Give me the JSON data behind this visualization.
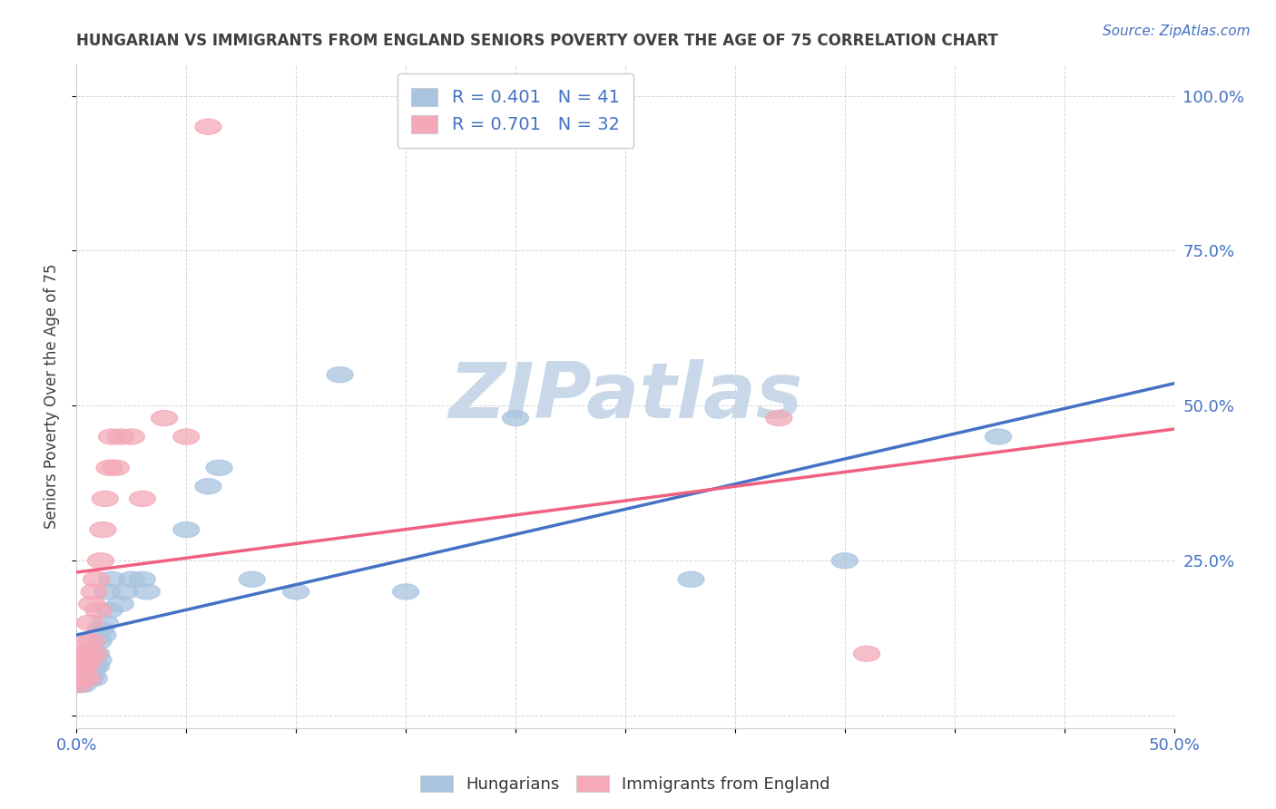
{
  "title": "HUNGARIAN VS IMMIGRANTS FROM ENGLAND SENIORS POVERTY OVER THE AGE OF 75 CORRELATION CHART",
  "source_text": "Source: ZipAtlas.com",
  "ylabel": "Seniors Poverty Over the Age of 75",
  "xlim": [
    0.0,
    0.5
  ],
  "ylim": [
    -0.02,
    1.05
  ],
  "background_color": "#ffffff",
  "watermark_text": "ZIPatlas",
  "watermark_color": "#c8d8e8",
  "legend_R_hungarian": "R = 0.401",
  "legend_N_hungarian": "N = 41",
  "legend_R_england": "R = 0.701",
  "legend_N_england": "N = 32",
  "hungarian_color": "#a8c4e0",
  "england_color": "#f4a8b8",
  "hungarian_line_color": "#4472c4",
  "england_line_color": "#f06080",
  "grid_color": "#cccccc",
  "title_color": "#404040",
  "axis_label_color": "#4472c4",
  "hungarian_scatter_x": [
    0.001,
    0.002,
    0.002,
    0.003,
    0.003,
    0.004,
    0.004,
    0.005,
    0.005,
    0.006,
    0.006,
    0.007,
    0.007,
    0.008,
    0.008,
    0.009,
    0.009,
    0.01,
    0.01,
    0.011,
    0.012,
    0.013,
    0.014,
    0.015,
    0.016,
    0.02,
    0.022,
    0.025,
    0.03,
    0.032,
    0.05,
    0.06,
    0.065,
    0.08,
    0.1,
    0.12,
    0.15,
    0.2,
    0.28,
    0.35,
    0.42
  ],
  "hungarian_scatter_y": [
    0.05,
    0.07,
    0.06,
    0.08,
    0.05,
    0.06,
    0.08,
    0.07,
    0.1,
    0.08,
    0.06,
    0.09,
    0.07,
    0.08,
    0.06,
    0.1,
    0.08,
    0.12,
    0.09,
    0.14,
    0.13,
    0.15,
    0.2,
    0.17,
    0.22,
    0.18,
    0.2,
    0.22,
    0.22,
    0.2,
    0.3,
    0.37,
    0.4,
    0.22,
    0.2,
    0.55,
    0.2,
    0.48,
    0.22,
    0.25,
    0.45
  ],
  "england_scatter_x": [
    0.001,
    0.001,
    0.002,
    0.002,
    0.003,
    0.003,
    0.004,
    0.004,
    0.005,
    0.005,
    0.006,
    0.006,
    0.007,
    0.007,
    0.008,
    0.008,
    0.009,
    0.01,
    0.011,
    0.012,
    0.013,
    0.015,
    0.016,
    0.018,
    0.02,
    0.025,
    0.03,
    0.04,
    0.05,
    0.06,
    0.32,
    0.36
  ],
  "england_scatter_y": [
    0.05,
    0.08,
    0.06,
    0.1,
    0.07,
    0.09,
    0.08,
    0.12,
    0.06,
    0.1,
    0.09,
    0.15,
    0.12,
    0.18,
    0.1,
    0.2,
    0.22,
    0.17,
    0.25,
    0.3,
    0.35,
    0.4,
    0.45,
    0.4,
    0.45,
    0.45,
    0.35,
    0.48,
    0.45,
    0.95,
    0.48,
    0.1
  ]
}
